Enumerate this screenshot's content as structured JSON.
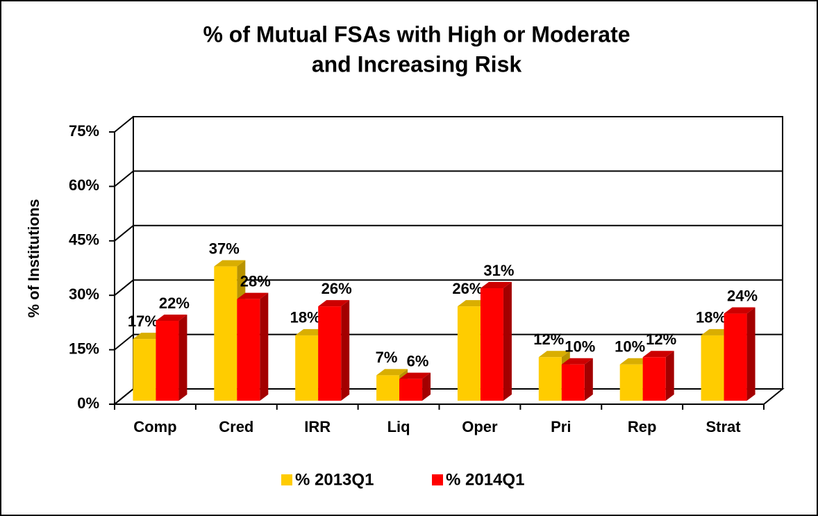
{
  "chart_data": {
    "type": "bar3d",
    "title": [
      "% of Mutual FSAs with High or Moderate",
      "and Increasing Risk"
    ],
    "y_label": "% of Institutions",
    "categories": [
      "Comp",
      "Cred",
      "IRR",
      "Liq",
      "Oper",
      "Pri",
      "Rep",
      "Strat"
    ],
    "series": [
      {
        "name": "% 2013Q1",
        "color": "#ffcc00",
        "top": "#d9ae00",
        "side": "#b89300",
        "values": [
          17,
          37,
          18,
          7,
          26,
          12,
          10,
          18
        ],
        "value_labels": [
          "17%",
          "37%",
          "18%",
          "7%",
          "26%",
          "12%",
          "10%",
          "18%"
        ]
      },
      {
        "name": "% 2014Q1",
        "color": "#ff0000",
        "top": "#cc0000",
        "side": "#a30000",
        "values": [
          22,
          28,
          26,
          6,
          31,
          10,
          12,
          24
        ],
        "value_labels": [
          "22%",
          "28%",
          "26%",
          "6%",
          "31%",
          "10%",
          "12%",
          "24%"
        ]
      }
    ],
    "ylim": [
      0,
      75
    ],
    "yticks": [
      {
        "value": 0,
        "label": "0%"
      },
      {
        "value": 15,
        "label": "15%"
      },
      {
        "value": 30,
        "label": "30%"
      },
      {
        "value": 45,
        "label": "45%"
      },
      {
        "value": 60,
        "label": "60%"
      },
      {
        "value": 75,
        "label": "75%"
      }
    ],
    "grid": true,
    "legend": "bottom"
  }
}
